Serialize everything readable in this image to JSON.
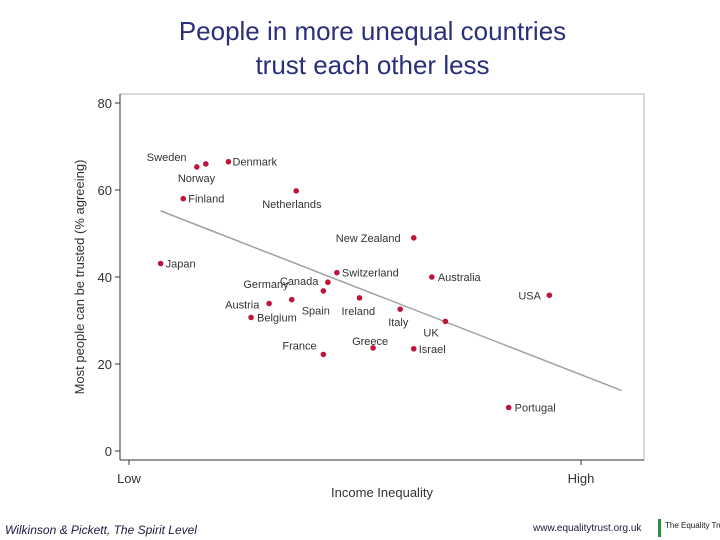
{
  "title_line1": "People in more unequal countries",
  "title_line2": "trust each other less",
  "footer": {
    "citation": "Wilkinson & Pickett, The Spirit Level",
    "website": "www.equalitytrust.org.uk",
    "logo_text": "The Equality Trust"
  },
  "colors": {
    "title": "#2a2f7a",
    "point": "#c0143c",
    "trend": "#a0a0a0",
    "logo": "#2e8b3a"
  },
  "chart_data": {
    "type": "scatter",
    "xlabel": "Income Inequality",
    "ylabel": "Most people can be trusted (% agreeing)",
    "x_tick_labels": [
      "Low",
      "High"
    ],
    "xlim": [
      -0.1,
      1.1
    ],
    "ylim": [
      0,
      80
    ],
    "yticks": [
      0,
      20,
      40,
      60,
      80
    ],
    "grid": false,
    "points": [
      {
        "label": "Sweden",
        "x": 0.15,
        "y": 65.3
      },
      {
        "label": "Denmark",
        "x": 0.22,
        "y": 66.5
      },
      {
        "label": "Norway",
        "x": 0.17,
        "y": 66.0
      },
      {
        "label": "Finland",
        "x": 0.12,
        "y": 58.0
      },
      {
        "label": "Netherlands",
        "x": 0.37,
        "y": 59.8
      },
      {
        "label": "New Zealand",
        "x": 0.63,
        "y": 49.0
      },
      {
        "label": "Japan",
        "x": 0.07,
        "y": 43.1
      },
      {
        "label": "Switzerland",
        "x": 0.46,
        "y": 41.0
      },
      {
        "label": "Australia",
        "x": 0.67,
        "y": 40.0
      },
      {
        "label": "Canada",
        "x": 0.44,
        "y": 38.8
      },
      {
        "label": "Germany",
        "x": 0.43,
        "y": 36.8
      },
      {
        "label": "Spain",
        "x": 0.36,
        "y": 34.8
      },
      {
        "label": "Austria",
        "x": 0.31,
        "y": 33.9
      },
      {
        "label": "Ireland",
        "x": 0.51,
        "y": 35.2
      },
      {
        "label": "Italy",
        "x": 0.6,
        "y": 32.6
      },
      {
        "label": "UK",
        "x": 0.7,
        "y": 29.8
      },
      {
        "label": "USA",
        "x": 0.93,
        "y": 35.8
      },
      {
        "label": "Belgium",
        "x": 0.27,
        "y": 30.7
      },
      {
        "label": "Greece",
        "x": 0.54,
        "y": 23.7
      },
      {
        "label": "Israel",
        "x": 0.63,
        "y": 23.5
      },
      {
        "label": "France",
        "x": 0.43,
        "y": 22.2
      },
      {
        "label": "Portugal",
        "x": 0.84,
        "y": 10.0
      }
    ],
    "trendline": {
      "x": [
        0.07,
        1.09
      ],
      "y": [
        55.2,
        13.9
      ]
    }
  }
}
